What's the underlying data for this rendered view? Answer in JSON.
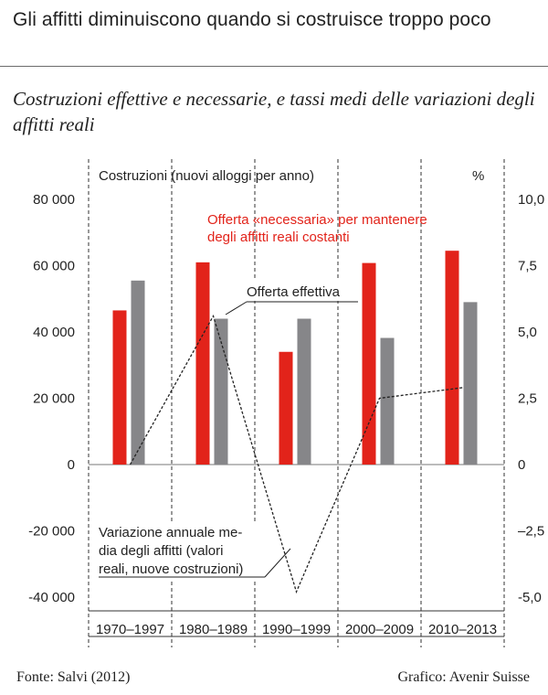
{
  "header": {
    "title": "Gli affitti diminuiscono quando si costruisce troppo poco",
    "subtitle": "Costruzioni effettive e necessarie, e tassi medi delle variazioni degli affitti reali"
  },
  "footer": {
    "source": "Fonte: Salvi (2012)",
    "credit": "Grafico: Avenir Suisse"
  },
  "chart_data": {
    "type": "bar",
    "categories": [
      "1970–1997",
      "1980–1989",
      "1990–1999",
      "2000–2009",
      "2010–2013"
    ],
    "series": [
      {
        "name": "Offerta «necessaria» per mantenere degli affitti reali costanti",
        "axis": "left",
        "type": "bar",
        "color": "#e2231a",
        "values": [
          46500,
          61000,
          34000,
          60800,
          64500
        ]
      },
      {
        "name": "Offerta effettiva",
        "axis": "left",
        "type": "bar",
        "color": "#868689",
        "values": [
          55500,
          44000,
          44000,
          38200,
          49000
        ]
      },
      {
        "name": "Variazione annuale media degli affitti (valori reali, nuove costruzioni)",
        "axis": "right",
        "type": "line",
        "style": "dashed",
        "color": "#222222",
        "values": [
          0,
          5.6,
          -4.8,
          2.5,
          2.9
        ]
      }
    ],
    "left_axis": {
      "label": "Costruzioni (nuovi alloggi per anno)",
      "ylim": [
        -40000,
        80000
      ],
      "ticks": [
        80000,
        60000,
        40000,
        20000,
        0,
        -20000,
        -40000
      ],
      "tick_labels": [
        "80 000",
        "60 000",
        "40 000",
        "20 000",
        "0",
        "-20 000",
        "-40 000"
      ]
    },
    "right_axis": {
      "label": "%",
      "ylim": [
        -5,
        10
      ],
      "ticks": [
        10,
        7.5,
        5,
        2.5,
        0,
        -2.5,
        -5
      ],
      "tick_labels": [
        "10,0",
        "7,5",
        "5,0",
        "2,5",
        "0",
        "–2,5",
        "-5,0"
      ]
    },
    "annotations": {
      "necessaria_line1": "Offerta «necessaria» per mantenere",
      "necessaria_line2": "degli affitti reali costanti",
      "effettiva": "Offerta effettiva",
      "variazione_line1": "Variazione annuale me-",
      "variazione_line2": "dia degli affitti (valori",
      "variazione_line3": "reali, nuove costruzioni)"
    },
    "grid": false
  }
}
